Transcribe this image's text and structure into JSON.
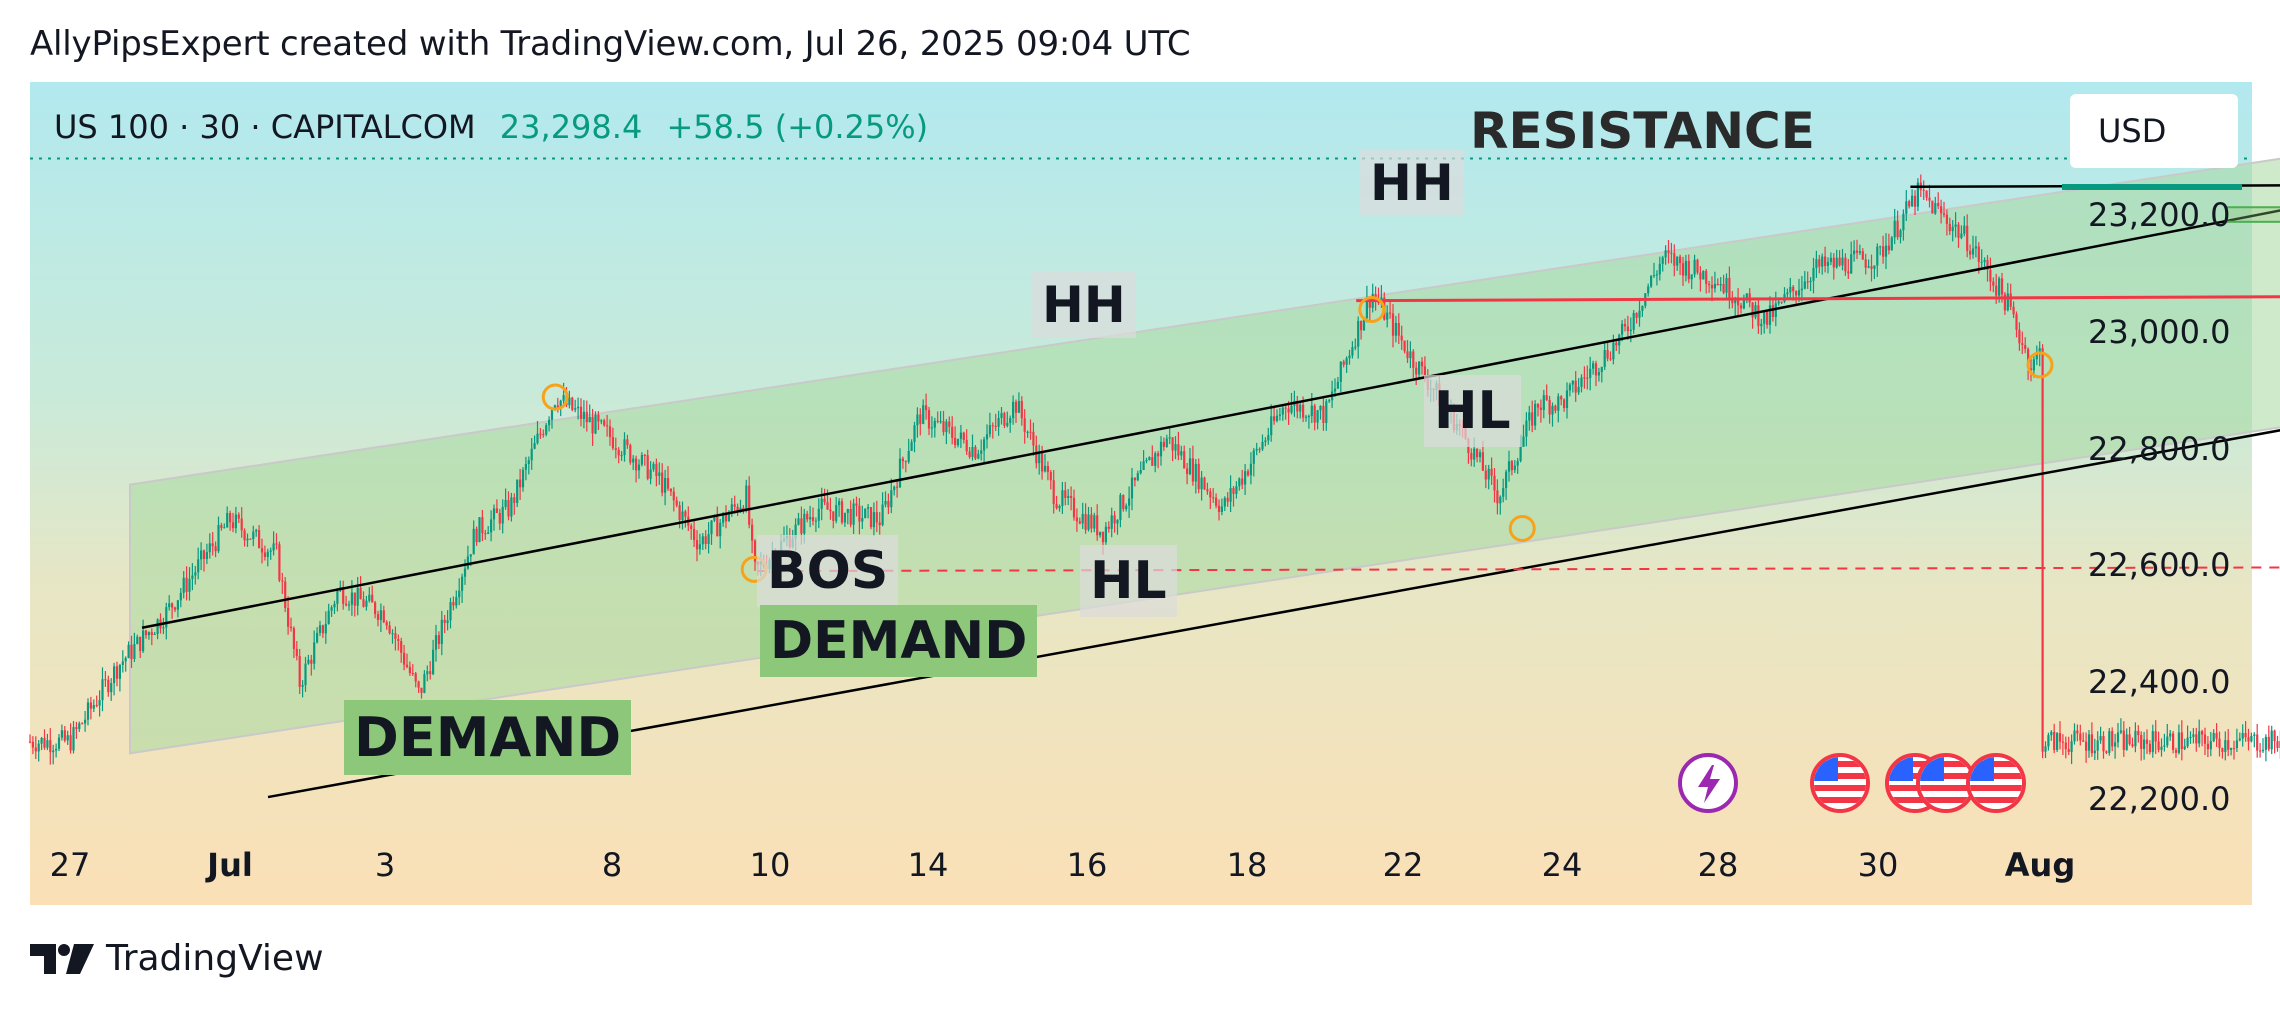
{
  "header": {
    "caption": "AllyPipsExpert created with TradingView.com, Jul 26, 2025 09:04 UTC"
  },
  "symbol": {
    "name": "US 100 · 30 · CAPITALCOM",
    "price": "23,298.4",
    "change": "+58.5 (+0.25%)"
  },
  "currency_button": "USD",
  "footer": {
    "brand": "TradingView"
  },
  "annotations": {
    "resistance": "RESISTANCE",
    "hh1": "HH",
    "hh2": "HH",
    "hl1": "HL",
    "hl2": "HL",
    "bos": "BOS",
    "demand1": "DEMAND",
    "demand2": "DEMAND"
  },
  "colors": {
    "up": "#089981",
    "down": "#f23645",
    "channel": "#a8d8a0",
    "swing_marker": "#f7a21b",
    "resistance_line": "#000000",
    "support_line": "#f23645",
    "event_lightning": "#9c27b0"
  },
  "icons": [
    "lightning-event-icon",
    "us-flag-icon",
    "us-flag-icon",
    "us-flag-icon",
    "us-flag-icon"
  ],
  "chart_data": {
    "type": "candlestick",
    "title": "",
    "ylim": [
      22100,
      23400
    ],
    "y_ticks": [
      "23,200.0",
      "23,000.0",
      "22,800.0",
      "22,600.0",
      "22,400.0",
      "22,200.0"
    ],
    "y_tick_values": [
      23200,
      23000,
      22800,
      22600,
      22400,
      22200
    ],
    "x_ticks": [
      "27",
      "Jul",
      "3",
      "8",
      "10",
      "14",
      "16",
      "18",
      "22",
      "24",
      "28",
      "30",
      "Aug"
    ],
    "x_tick_index": [
      0,
      1,
      2,
      3,
      4,
      5,
      6,
      7,
      8,
      9,
      10,
      11,
      12
    ],
    "last_price": 23298.4,
    "price_path": [
      [
        0,
        22300
      ],
      [
        0.3,
        22430
      ],
      [
        0.6,
        22520
      ],
      [
        1.0,
        22680
      ],
      [
        1.3,
        22620
      ],
      [
        1.45,
        22400
      ],
      [
        1.7,
        22560
      ],
      [
        2.0,
        22520
      ],
      [
        2.15,
        22380
      ],
      [
        2.4,
        22660
      ],
      [
        2.55,
        22700
      ],
      [
        2.75,
        22890
      ],
      [
        3.0,
        22820
      ],
      [
        3.3,
        22750
      ],
      [
        3.55,
        22640
      ],
      [
        3.85,
        22720
      ],
      [
        3.9,
        22590
      ],
      [
        4.3,
        22700
      ],
      [
        4.7,
        22680
      ],
      [
        4.95,
        22860
      ],
      [
        5.3,
        22800
      ],
      [
        5.55,
        22880
      ],
      [
        5.8,
        22720
      ],
      [
        6.1,
        22660
      ],
      [
        6.5,
        22820
      ],
      [
        6.85,
        22700
      ],
      [
        7.25,
        22880
      ],
      [
        7.5,
        22860
      ],
      [
        7.8,
        23070
      ],
      [
        8.05,
        22960
      ],
      [
        8.35,
        22840
      ],
      [
        8.6,
        22720
      ],
      [
        8.85,
        22880
      ],
      [
        9.0,
        22880
      ],
      [
        9.4,
        23000
      ],
      [
        9.65,
        23130
      ],
      [
        10.0,
        23090
      ],
      [
        10.3,
        23020
      ],
      [
        10.6,
        23110
      ],
      [
        11.0,
        23130
      ],
      [
        11.25,
        23240
      ],
      [
        11.55,
        23160
      ],
      [
        11.8,
        23050
      ],
      [
        11.95,
        22940
      ],
      [
        12.2,
        23080
      ],
      [
        12.5,
        23050
      ],
      [
        12.75,
        23120
      ],
      [
        12.9,
        23000
      ],
      [
        13.1,
        23240
      ],
      [
        13.4,
        23240
      ],
      [
        13.65,
        23220
      ],
      [
        13.95,
        23280
      ],
      [
        14.2,
        23250
      ],
      [
        14.45,
        23298
      ]
    ],
    "channel_upper_start": [
      0.15,
      22700
    ],
    "channel_upper_end": [
      14.45,
      23320
    ],
    "channel_lower_start": [
      0.3,
      22220
    ],
    "channel_lower_end": [
      14.45,
      22840
    ],
    "resistance_level": 23250,
    "support_levels": [
      23060,
      22595
    ],
    "target_zone": [
      23190,
      23215
    ],
    "swing_points": [
      [
        2.75,
        22890
      ],
      [
        3.9,
        22595
      ],
      [
        7.8,
        23040
      ],
      [
        8.75,
        22665
      ],
      [
        12.0,
        22945
      ]
    ],
    "legend": "none",
    "grid": false
  }
}
